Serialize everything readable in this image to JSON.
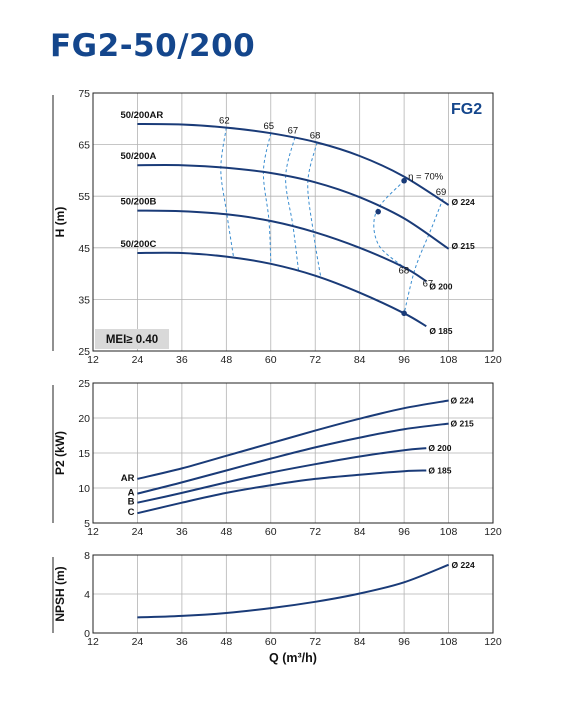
{
  "title": "FG2-50/200",
  "colors": {
    "curve": "#1a3b78",
    "dashed": "#3a8dd0",
    "title": "#14468c",
    "mei_bg": "#d9d9d9"
  },
  "chart_data": [
    {
      "id": "head",
      "type": "line",
      "badge": "FG2",
      "mei_label": "MEI≥ 0.40",
      "ylabel": "H (m)",
      "xlim": [
        12,
        120
      ],
      "ylim": [
        25,
        75
      ],
      "xticks": [
        12,
        24,
        36,
        48,
        60,
        72,
        84,
        96,
        108,
        120
      ],
      "yticks": [
        25,
        35,
        45,
        55,
        65,
        75
      ],
      "grid": true,
      "series": [
        {
          "name": "50/200AR",
          "diameter": "Ø 224",
          "points": [
            [
              24,
              69
            ],
            [
              36,
              68.9
            ],
            [
              48,
              68.3
            ],
            [
              60,
              67.2
            ],
            [
              72,
              65.5
            ],
            [
              84,
              62.8
            ],
            [
              96,
              58.8
            ],
            [
              108,
              53.3
            ]
          ]
        },
        {
          "name": "50/200A",
          "diameter": "Ø 215",
          "points": [
            [
              24,
              61
            ],
            [
              36,
              61
            ],
            [
              48,
              60.5
            ],
            [
              60,
              59.5
            ],
            [
              72,
              57.7
            ],
            [
              84,
              54.8
            ],
            [
              96,
              50.7
            ],
            [
              108,
              44.8
            ]
          ]
        },
        {
          "name": "50/200B",
          "diameter": "Ø 200",
          "points": [
            [
              24,
              52.2
            ],
            [
              36,
              52.1
            ],
            [
              48,
              51.5
            ],
            [
              60,
              50.2
            ],
            [
              72,
              48
            ],
            [
              84,
              45
            ],
            [
              96,
              41.2
            ],
            [
              102,
              38.5
            ]
          ]
        },
        {
          "name": "50/200C",
          "diameter": "Ø 185",
          "points": [
            [
              24,
              44
            ],
            [
              36,
              44
            ],
            [
              48,
              43.3
            ],
            [
              60,
              41.9
            ],
            [
              72,
              39.6
            ],
            [
              84,
              36.3
            ],
            [
              96,
              32.3
            ],
            [
              102,
              29.8
            ]
          ]
        }
      ],
      "efficiency_lines": [
        {
          "label": "62",
          "points": [
            [
              48,
              68.3
            ],
            [
              46.5,
              60.3
            ],
            [
              48,
              52.2
            ],
            [
              50,
              43
            ]
          ]
        },
        {
          "label": "65",
          "points": [
            [
              60,
              67.2
            ],
            [
              58,
              59.7
            ],
            [
              59.5,
              50.4
            ],
            [
              60,
              42
            ]
          ]
        },
        {
          "label": "67",
          "points": [
            [
              66.5,
              66.4
            ],
            [
              64,
              58.6
            ],
            [
              66,
              49.2
            ],
            [
              67.5,
              40.5
            ]
          ]
        },
        {
          "label": "68",
          "points": [
            [
              72.5,
              65.4
            ],
            [
              70,
              57.7
            ],
            [
              71.5,
              48
            ],
            [
              73.5,
              39.3
            ]
          ]
        },
        {
          "label": "η = 70%",
          "points": [
            [
              96,
              58
            ],
            [
              88.5,
              52
            ],
            [
              89,
              45.7
            ],
            [
              96,
              41.2
            ]
          ]
        },
        {
          "label": "69",
          "points": [
            [
              106.5,
              54.5
            ],
            [
              103.5,
              49
            ],
            [
              99,
              41
            ],
            [
              96,
              32.3
            ]
          ]
        }
      ],
      "bep_points": [
        [
          96,
          58
        ],
        [
          89,
          52
        ],
        [
          96,
          32.3
        ]
      ],
      "small_labels": [
        {
          "text": "68",
          "at": [
            94.5,
            40
          ]
        },
        {
          "text": "67",
          "at": [
            101,
            37.5
          ]
        }
      ]
    },
    {
      "id": "power",
      "type": "line",
      "ylabel": "P2 (kW)",
      "xlim": [
        12,
        120
      ],
      "ylim": [
        5,
        25
      ],
      "xticks": [
        12,
        24,
        36,
        48,
        60,
        72,
        84,
        96,
        108,
        120
      ],
      "yticks": [
        5,
        10,
        15,
        20,
        25
      ],
      "grid": true,
      "series": [
        {
          "name": "AR",
          "diameter": "Ø 224",
          "points": [
            [
              24,
              11.3
            ],
            [
              36,
              12.8
            ],
            [
              48,
              14.6
            ],
            [
              60,
              16.4
            ],
            [
              72,
              18.2
            ],
            [
              84,
              19.9
            ],
            [
              96,
              21.4
            ],
            [
              108,
              22.5
            ]
          ]
        },
        {
          "name": "A",
          "diameter": "Ø 215",
          "points": [
            [
              24,
              9.2
            ],
            [
              36,
              10.8
            ],
            [
              48,
              12.5
            ],
            [
              60,
              14.2
            ],
            [
              72,
              15.8
            ],
            [
              84,
              17.2
            ],
            [
              96,
              18.4
            ],
            [
              108,
              19.2
            ]
          ]
        },
        {
          "name": "B",
          "diameter": "Ø 200",
          "points": [
            [
              24,
              7.9
            ],
            [
              36,
              9.3
            ],
            [
              48,
              10.8
            ],
            [
              60,
              12.2
            ],
            [
              72,
              13.4
            ],
            [
              84,
              14.5
            ],
            [
              96,
              15.4
            ],
            [
              102,
              15.7
            ]
          ]
        },
        {
          "name": "C",
          "diameter": "Ø 185",
          "points": [
            [
              24,
              6.4
            ],
            [
              36,
              7.9
            ],
            [
              48,
              9.3
            ],
            [
              60,
              10.4
            ],
            [
              72,
              11.3
            ],
            [
              84,
              11.9
            ],
            [
              96,
              12.4
            ],
            [
              102,
              12.5
            ]
          ]
        }
      ]
    },
    {
      "id": "npsh",
      "type": "line",
      "ylabel": "NPSH (m)",
      "xlabel": "Q (m³/h)",
      "xlim": [
        12,
        120
      ],
      "ylim": [
        0,
        8
      ],
      "xticks": [
        12,
        24,
        36,
        48,
        60,
        72,
        84,
        96,
        108,
        120
      ],
      "yticks": [
        0,
        4,
        8
      ],
      "grid": true,
      "series": [
        {
          "name": "Ø 224",
          "points": [
            [
              24,
              1.6
            ],
            [
              36,
              1.75
            ],
            [
              48,
              2.05
            ],
            [
              60,
              2.55
            ],
            [
              72,
              3.2
            ],
            [
              84,
              4.05
            ],
            [
              96,
              5.2
            ],
            [
              108,
              7
            ]
          ]
        }
      ]
    }
  ]
}
